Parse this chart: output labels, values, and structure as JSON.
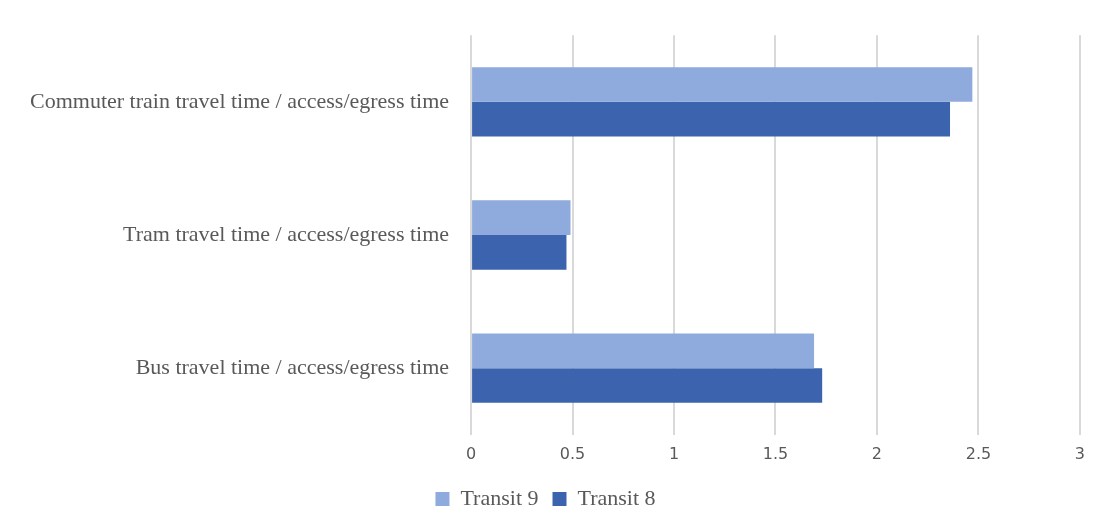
{
  "chart_data": {
    "type": "bar",
    "orientation": "horizontal",
    "categories": [
      "Commuter train travel time / access/egress time",
      "Tram travel time / access/egress time",
      "Bus travel time / access/egress time"
    ],
    "series": [
      {
        "name": "Transit 9",
        "color": "#8faadc",
        "values": [
          2.47,
          0.49,
          1.69
        ]
      },
      {
        "name": "Transit 8",
        "color": "#3c64ae",
        "values": [
          2.36,
          0.47,
          1.73
        ]
      }
    ],
    "xlim": [
      0,
      3
    ],
    "xticks": [
      0,
      0.5,
      1,
      1.5,
      2,
      2.5,
      3
    ],
    "grid": "x",
    "legend": "bottom"
  }
}
